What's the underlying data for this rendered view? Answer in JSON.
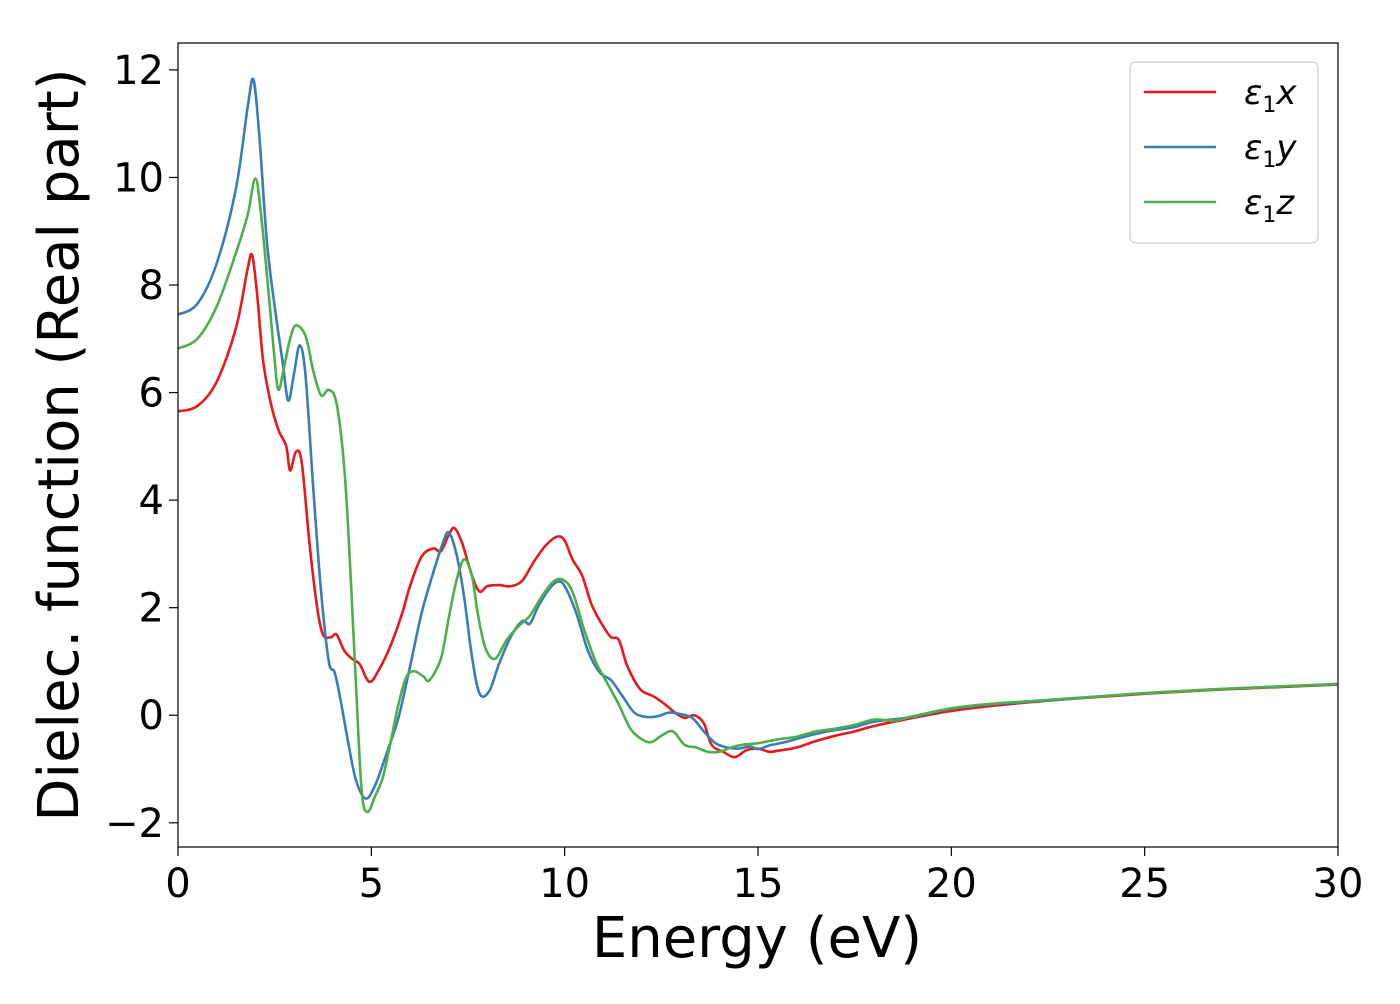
{
  "chart_data": {
    "type": "line",
    "xlabel": "Energy (eV)",
    "ylabel": "Dielec. function (Real part)",
    "xlim": [
      0,
      30
    ],
    "ylim": [
      -2.45,
      12.5
    ],
    "xticks": [
      0,
      5,
      10,
      15,
      20,
      25,
      30
    ],
    "yticks": [
      -2,
      0,
      2,
      4,
      6,
      8,
      10,
      12
    ],
    "xtick_labels": [
      "0",
      "5",
      "10",
      "15",
      "20",
      "25",
      "30"
    ],
    "ytick_labels": [
      "−2",
      "0",
      "2",
      "4",
      "6",
      "8",
      "10",
      "12"
    ],
    "grid": false,
    "legend_position": "top-right",
    "series": [
      {
        "name": "ε₁x",
        "legend_base": "ε",
        "legend_sub": "1",
        "legend_tail": "x",
        "color": "#e41a1c",
        "points": [
          [
            0,
            5.65
          ],
          [
            0.5,
            5.75
          ],
          [
            1.0,
            6.2
          ],
          [
            1.5,
            7.2
          ],
          [
            1.8,
            8.3
          ],
          [
            1.92,
            8.55
          ],
          [
            2.05,
            7.8
          ],
          [
            2.2,
            6.6
          ],
          [
            2.4,
            5.8
          ],
          [
            2.6,
            5.3
          ],
          [
            2.8,
            5.0
          ],
          [
            2.9,
            4.55
          ],
          [
            3.05,
            4.9
          ],
          [
            3.2,
            4.7
          ],
          [
            3.4,
            3.2
          ],
          [
            3.6,
            2.0
          ],
          [
            3.75,
            1.5
          ],
          [
            3.95,
            1.45
          ],
          [
            4.1,
            1.5
          ],
          [
            4.3,
            1.2
          ],
          [
            4.5,
            1.05
          ],
          [
            4.7,
            0.95
          ],
          [
            4.95,
            0.62
          ],
          [
            5.2,
            0.85
          ],
          [
            5.5,
            1.3
          ],
          [
            5.8,
            1.9
          ],
          [
            6.0,
            2.4
          ],
          [
            6.3,
            2.95
          ],
          [
            6.6,
            3.1
          ],
          [
            6.8,
            3.05
          ],
          [
            7.0,
            3.35
          ],
          [
            7.15,
            3.48
          ],
          [
            7.35,
            3.2
          ],
          [
            7.6,
            2.6
          ],
          [
            7.8,
            2.3
          ],
          [
            8.0,
            2.4
          ],
          [
            8.3,
            2.42
          ],
          [
            8.6,
            2.4
          ],
          [
            8.9,
            2.5
          ],
          [
            9.2,
            2.85
          ],
          [
            9.5,
            3.15
          ],
          [
            9.8,
            3.32
          ],
          [
            10.0,
            3.25
          ],
          [
            10.2,
            2.9
          ],
          [
            10.45,
            2.6
          ],
          [
            10.7,
            2.05
          ],
          [
            11.0,
            1.65
          ],
          [
            11.2,
            1.45
          ],
          [
            11.4,
            1.4
          ],
          [
            11.6,
            0.95
          ],
          [
            11.8,
            0.65
          ],
          [
            12.0,
            0.45
          ],
          [
            12.3,
            0.35
          ],
          [
            12.6,
            0.2
          ],
          [
            12.85,
            0.05
          ],
          [
            13.1,
            -0.05
          ],
          [
            13.35,
            0.0
          ],
          [
            13.6,
            -0.15
          ],
          [
            13.8,
            -0.55
          ],
          [
            14.1,
            -0.68
          ],
          [
            14.4,
            -0.78
          ],
          [
            14.7,
            -0.65
          ],
          [
            15.0,
            -0.62
          ],
          [
            15.3,
            -0.68
          ],
          [
            15.6,
            -0.65
          ],
          [
            16.0,
            -0.6
          ],
          [
            16.5,
            -0.48
          ],
          [
            17.0,
            -0.38
          ],
          [
            17.5,
            -0.3
          ],
          [
            18.0,
            -0.2
          ],
          [
            19.0,
            -0.05
          ],
          [
            20.0,
            0.08
          ],
          [
            21.0,
            0.17
          ],
          [
            22.0,
            0.24
          ],
          [
            23.0,
            0.3
          ],
          [
            24.0,
            0.35
          ],
          [
            25.0,
            0.4
          ],
          [
            26.0,
            0.44
          ],
          [
            27.0,
            0.48
          ],
          [
            28.0,
            0.51
          ],
          [
            29.0,
            0.54
          ],
          [
            30.0,
            0.57
          ]
        ]
      },
      {
        "name": "ε₁y",
        "legend_base": "ε",
        "legend_sub": "1",
        "legend_tail": "y",
        "color": "#377eb8",
        "points": [
          [
            0,
            7.45
          ],
          [
            0.5,
            7.65
          ],
          [
            1.0,
            8.4
          ],
          [
            1.5,
            9.8
          ],
          [
            1.8,
            11.3
          ],
          [
            1.95,
            11.82
          ],
          [
            2.1,
            10.8
          ],
          [
            2.3,
            8.8
          ],
          [
            2.5,
            7.6
          ],
          [
            2.7,
            6.6
          ],
          [
            2.85,
            5.85
          ],
          [
            3.0,
            6.35
          ],
          [
            3.15,
            6.88
          ],
          [
            3.3,
            6.3
          ],
          [
            3.5,
            4.2
          ],
          [
            3.7,
            2.3
          ],
          [
            3.9,
            1.0
          ],
          [
            4.05,
            0.8
          ],
          [
            4.2,
            0.3
          ],
          [
            4.4,
            -0.5
          ],
          [
            4.6,
            -1.2
          ],
          [
            4.85,
            -1.55
          ],
          [
            5.1,
            -1.3
          ],
          [
            5.4,
            -0.7
          ],
          [
            5.7,
            -0.05
          ],
          [
            6.0,
            0.9
          ],
          [
            6.3,
            1.9
          ],
          [
            6.6,
            2.65
          ],
          [
            6.85,
            3.2
          ],
          [
            7.0,
            3.4
          ],
          [
            7.2,
            3.0
          ],
          [
            7.4,
            2.2
          ],
          [
            7.6,
            1.1
          ],
          [
            7.8,
            0.4
          ],
          [
            8.05,
            0.45
          ],
          [
            8.3,
            0.95
          ],
          [
            8.6,
            1.45
          ],
          [
            8.9,
            1.75
          ],
          [
            9.1,
            1.7
          ],
          [
            9.3,
            2.0
          ],
          [
            9.55,
            2.3
          ],
          [
            9.8,
            2.48
          ],
          [
            10.0,
            2.4
          ],
          [
            10.3,
            1.9
          ],
          [
            10.6,
            1.2
          ],
          [
            10.9,
            0.8
          ],
          [
            11.2,
            0.65
          ],
          [
            11.5,
            0.35
          ],
          [
            11.8,
            0.05
          ],
          [
            12.1,
            -0.03
          ],
          [
            12.4,
            -0.02
          ],
          [
            12.7,
            0.05
          ],
          [
            13.0,
            0.02
          ],
          [
            13.3,
            -0.05
          ],
          [
            13.6,
            -0.3
          ],
          [
            13.9,
            -0.52
          ],
          [
            14.2,
            -0.6
          ],
          [
            14.5,
            -0.62
          ],
          [
            14.8,
            -0.58
          ],
          [
            15.0,
            -0.63
          ],
          [
            15.3,
            -0.56
          ],
          [
            15.7,
            -0.5
          ],
          [
            16.2,
            -0.4
          ],
          [
            16.8,
            -0.3
          ],
          [
            17.5,
            -0.22
          ],
          [
            18.0,
            -0.12
          ],
          [
            19.0,
            -0.03
          ],
          [
            20.0,
            0.12
          ],
          [
            21.0,
            0.2
          ],
          [
            22.0,
            0.25
          ],
          [
            23.0,
            0.3
          ],
          [
            24.0,
            0.36
          ],
          [
            25.0,
            0.41
          ],
          [
            26.0,
            0.45
          ],
          [
            27.0,
            0.49
          ],
          [
            28.0,
            0.52
          ],
          [
            29.0,
            0.55
          ],
          [
            30.0,
            0.58
          ]
        ]
      },
      {
        "name": "ε₁z",
        "legend_base": "ε",
        "legend_sub": "1",
        "legend_tail": "z",
        "color": "#4daf4a",
        "points": [
          [
            0,
            6.82
          ],
          [
            0.5,
            7.0
          ],
          [
            1.0,
            7.6
          ],
          [
            1.5,
            8.6
          ],
          [
            1.8,
            9.3
          ],
          [
            2.0,
            9.98
          ],
          [
            2.15,
            9.3
          ],
          [
            2.35,
            7.8
          ],
          [
            2.5,
            6.6
          ],
          [
            2.6,
            6.05
          ],
          [
            2.75,
            6.5
          ],
          [
            2.9,
            7.0
          ],
          [
            3.05,
            7.25
          ],
          [
            3.3,
            7.05
          ],
          [
            3.5,
            6.4
          ],
          [
            3.7,
            5.95
          ],
          [
            3.9,
            6.05
          ],
          [
            4.1,
            5.8
          ],
          [
            4.3,
            4.6
          ],
          [
            4.45,
            2.8
          ],
          [
            4.6,
            0.6
          ],
          [
            4.75,
            -1.4
          ],
          [
            4.9,
            -1.8
          ],
          [
            5.1,
            -1.5
          ],
          [
            5.3,
            -1.15
          ],
          [
            5.5,
            -0.5
          ],
          [
            5.7,
            0.2
          ],
          [
            5.9,
            0.7
          ],
          [
            6.1,
            0.82
          ],
          [
            6.35,
            0.72
          ],
          [
            6.5,
            0.65
          ],
          [
            6.8,
            1.05
          ],
          [
            7.0,
            1.8
          ],
          [
            7.2,
            2.5
          ],
          [
            7.4,
            2.9
          ],
          [
            7.6,
            2.6
          ],
          [
            7.75,
            1.9
          ],
          [
            7.95,
            1.25
          ],
          [
            8.2,
            1.05
          ],
          [
            8.5,
            1.4
          ],
          [
            8.8,
            1.65
          ],
          [
            9.1,
            1.85
          ],
          [
            9.4,
            2.2
          ],
          [
            9.7,
            2.48
          ],
          [
            9.95,
            2.52
          ],
          [
            10.2,
            2.3
          ],
          [
            10.5,
            1.6
          ],
          [
            10.8,
            1.0
          ],
          [
            11.1,
            0.6
          ],
          [
            11.4,
            0.2
          ],
          [
            11.7,
            -0.25
          ],
          [
            12.0,
            -0.45
          ],
          [
            12.25,
            -0.5
          ],
          [
            12.5,
            -0.38
          ],
          [
            12.8,
            -0.3
          ],
          [
            13.1,
            -0.55
          ],
          [
            13.4,
            -0.6
          ],
          [
            13.7,
            -0.68
          ],
          [
            14.0,
            -0.68
          ],
          [
            14.3,
            -0.6
          ],
          [
            14.6,
            -0.55
          ],
          [
            15.0,
            -0.52
          ],
          [
            15.5,
            -0.45
          ],
          [
            16.0,
            -0.4
          ],
          [
            16.5,
            -0.3
          ],
          [
            17.0,
            -0.25
          ],
          [
            17.5,
            -0.18
          ],
          [
            18.0,
            -0.08
          ],
          [
            18.5,
            -0.1
          ],
          [
            19.0,
            -0.02
          ],
          [
            20.0,
            0.13
          ],
          [
            21.0,
            0.21
          ],
          [
            22.0,
            0.26
          ],
          [
            23.0,
            0.31
          ],
          [
            24.0,
            0.36
          ],
          [
            25.0,
            0.41
          ],
          [
            26.0,
            0.45
          ],
          [
            27.0,
            0.49
          ],
          [
            28.0,
            0.52
          ],
          [
            29.0,
            0.55
          ],
          [
            30.0,
            0.58
          ]
        ]
      }
    ]
  }
}
